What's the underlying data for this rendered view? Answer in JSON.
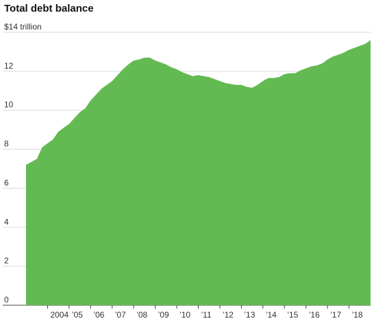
{
  "chart_data": {
    "type": "area",
    "title": "Total debt balance",
    "y_unit_label": "$14 trillion",
    "ylim": [
      0,
      14
    ],
    "y_ticks": [
      0,
      2,
      4,
      6,
      8,
      10,
      12,
      14
    ],
    "y_tick_labels": [
      "0",
      "2",
      "4",
      "6",
      "8",
      "10",
      "12",
      "$14 trillion"
    ],
    "x_ticks": [
      2004,
      2005,
      2006,
      2007,
      2008,
      2009,
      2010,
      2011,
      2012,
      2013,
      2014,
      2015,
      2016,
      2017,
      2018
    ],
    "x_tick_labels": [
      "2004",
      "’05",
      "’06",
      "’07",
      "’08",
      "’09",
      "’10",
      "’11",
      "’12",
      "’13",
      "’14",
      "’15",
      "’16",
      "’17",
      "’18"
    ],
    "xlim": [
      2003.0,
      2019.0
    ],
    "grid": true,
    "fill_color": "#64ba52",
    "series": [
      {
        "x": [
          2003.0,
          2003.5,
          2003.75,
          2004.0,
          2004.25,
          2004.5,
          2004.75,
          2005.0,
          2005.25,
          2005.5,
          2005.75,
          2006.0,
          2006.25,
          2006.5,
          2006.75,
          2007.0,
          2007.25,
          2007.5,
          2007.75,
          2008.0,
          2008.25,
          2008.5,
          2008.75,
          2009.0,
          2009.25,
          2009.5,
          2009.75,
          2010.0,
          2010.25,
          2010.5,
          2010.75,
          2011.0,
          2011.25,
          2011.5,
          2011.75,
          2012.0,
          2012.25,
          2012.5,
          2012.75,
          2013.0,
          2013.25,
          2013.5,
          2013.75,
          2014.0,
          2014.25,
          2014.5,
          2014.75,
          2015.0,
          2015.25,
          2015.5,
          2015.75,
          2016.0,
          2016.25,
          2016.5,
          2016.75,
          2017.0,
          2017.25,
          2017.5,
          2017.75,
          2018.0,
          2018.25,
          2018.5,
          2018.75,
          2019.0
        ],
        "values": [
          7.2,
          7.5,
          8.1,
          8.3,
          8.5,
          8.9,
          9.1,
          9.3,
          9.6,
          9.9,
          10.1,
          10.5,
          10.8,
          11.1,
          11.3,
          11.5,
          11.8,
          12.1,
          12.35,
          12.55,
          12.6,
          12.7,
          12.7,
          12.55,
          12.45,
          12.35,
          12.2,
          12.1,
          11.95,
          11.85,
          11.75,
          11.8,
          11.75,
          11.7,
          11.6,
          11.5,
          11.4,
          11.35,
          11.3,
          11.3,
          11.2,
          11.15,
          11.3,
          11.5,
          11.65,
          11.65,
          11.7,
          11.85,
          11.9,
          11.9,
          12.05,
          12.15,
          12.25,
          12.3,
          12.4,
          12.6,
          12.75,
          12.85,
          12.95,
          13.1,
          13.2,
          13.3,
          13.4,
          13.6
        ]
      }
    ]
  }
}
